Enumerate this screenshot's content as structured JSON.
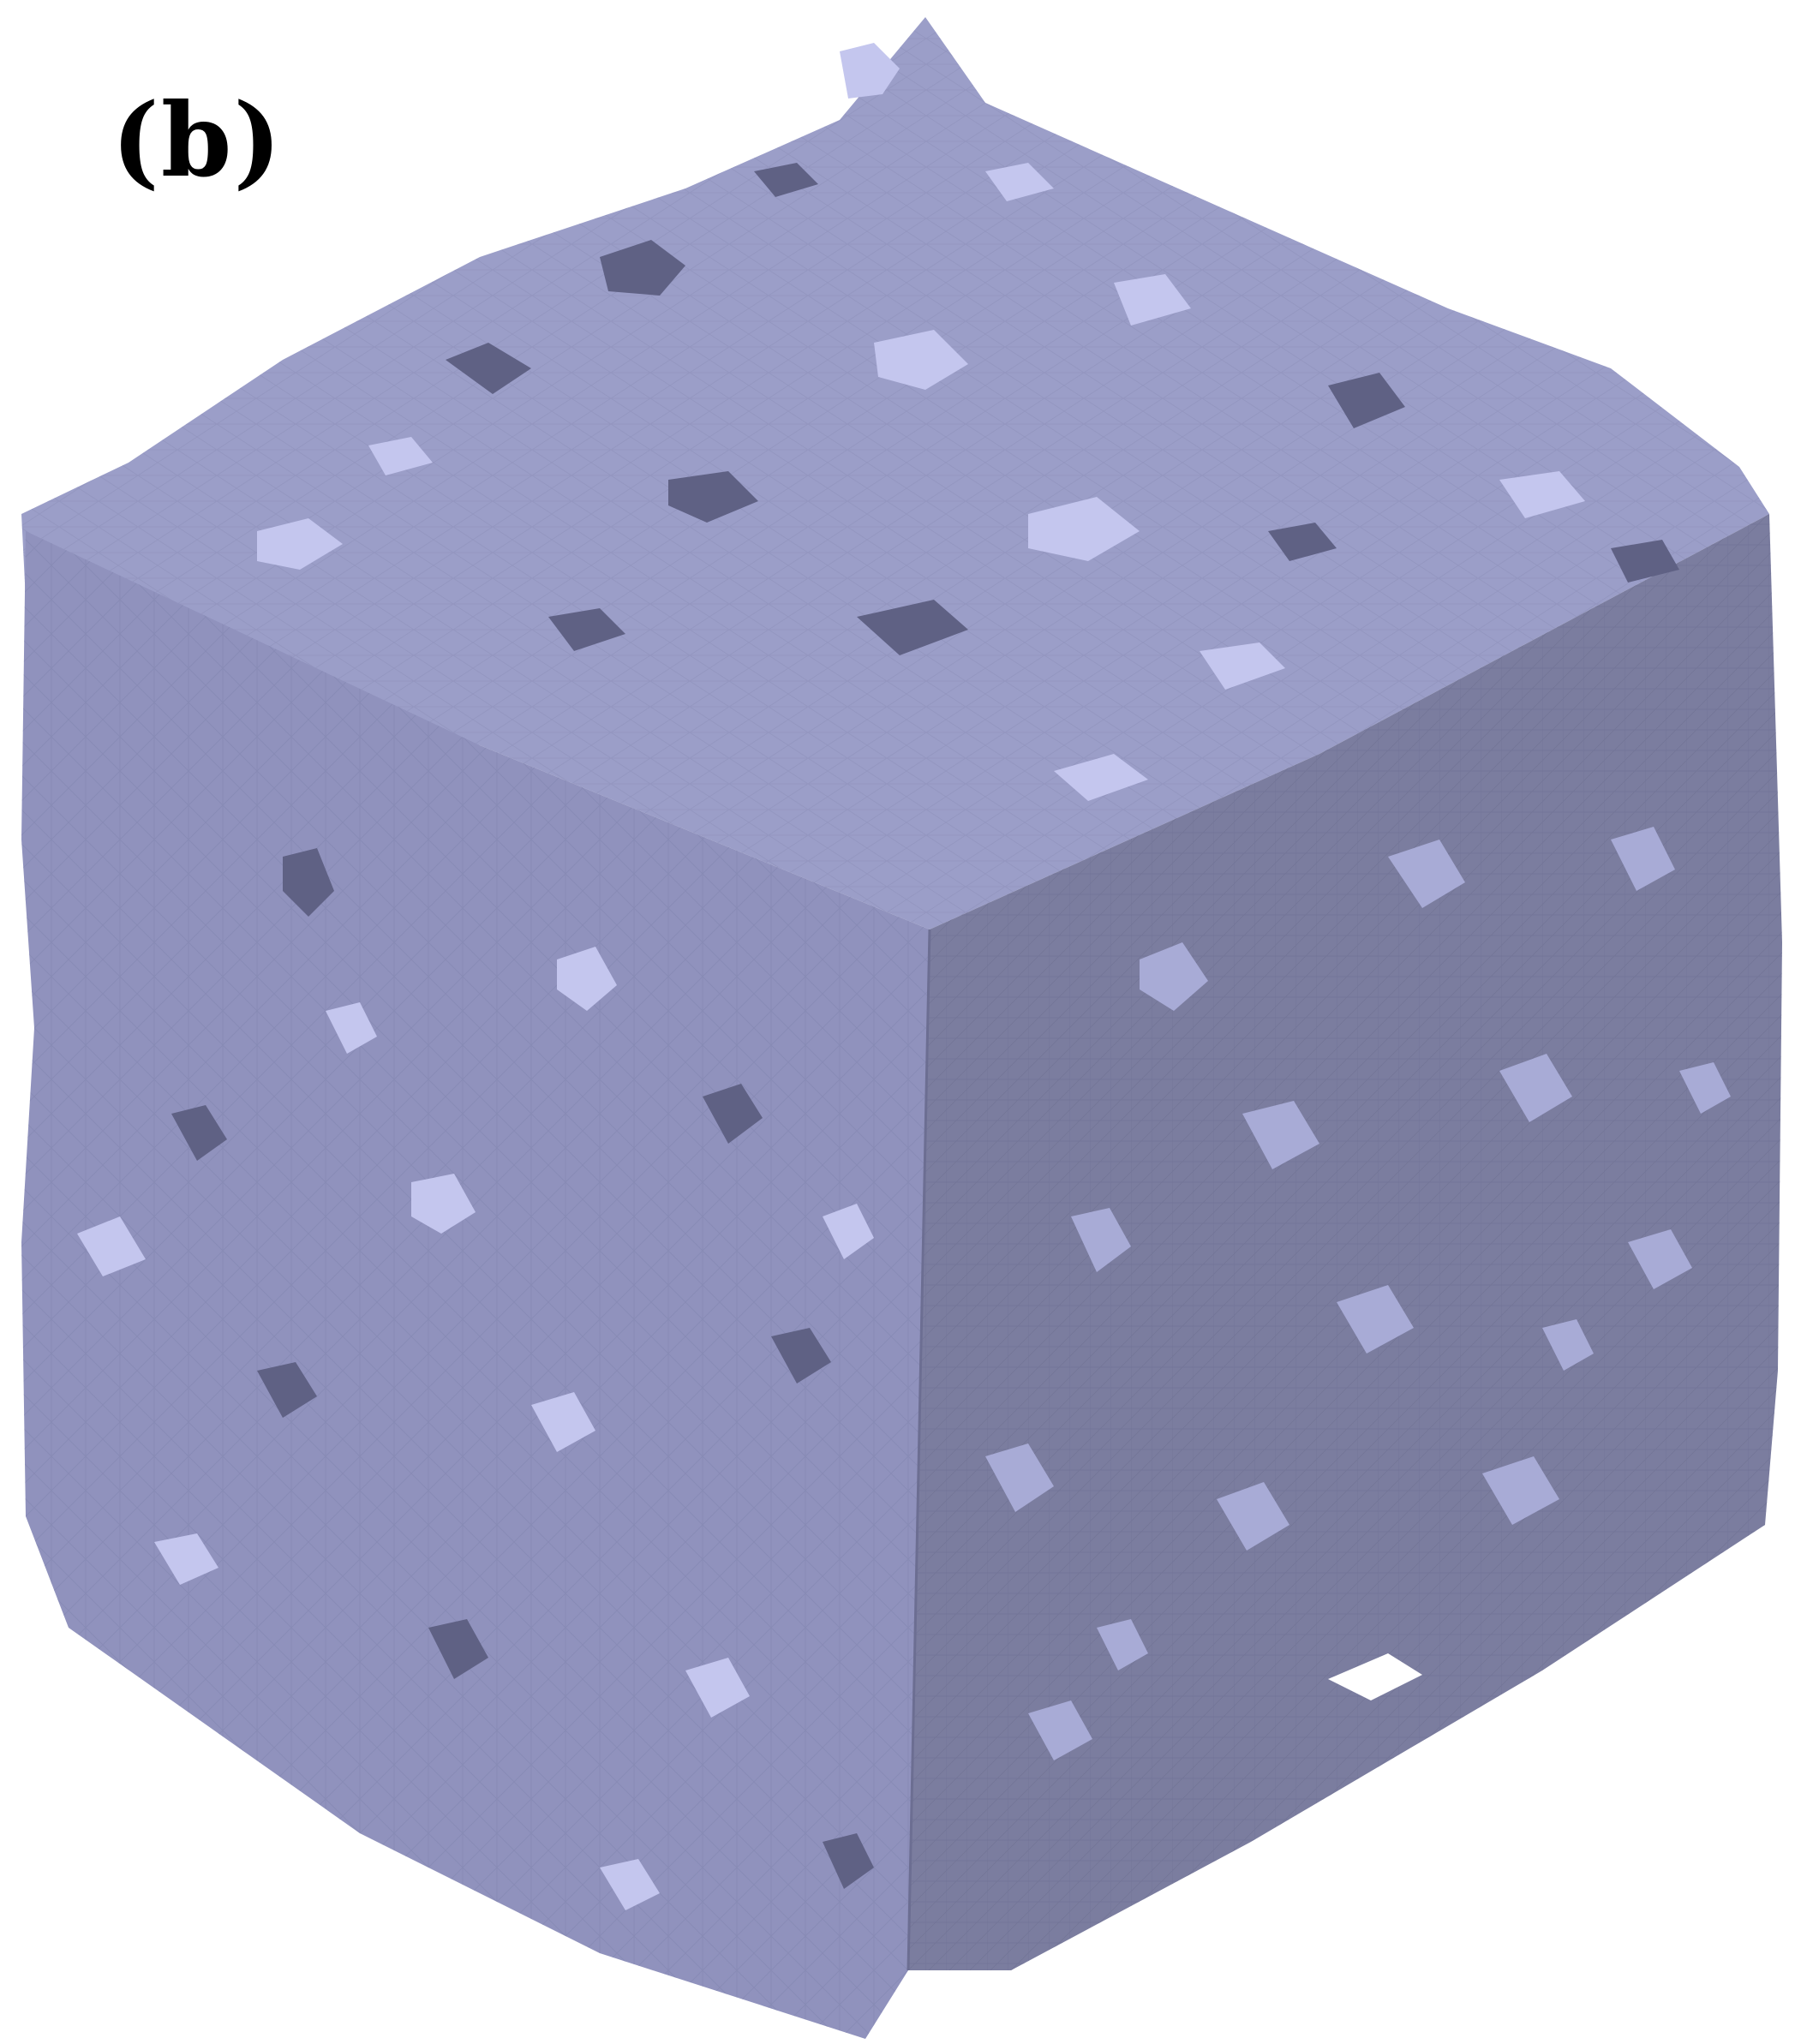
{
  "figure": {
    "panel_label": "(b)",
    "colors": {
      "background": "#ffffff",
      "top_face": "#9b9ec8",
      "left_face": "#9092bd",
      "right_face": "#7b7d9f",
      "highlight": "#c4c6ee",
      "shadow": "#5f6184",
      "edge": "#6c6e92"
    }
  }
}
